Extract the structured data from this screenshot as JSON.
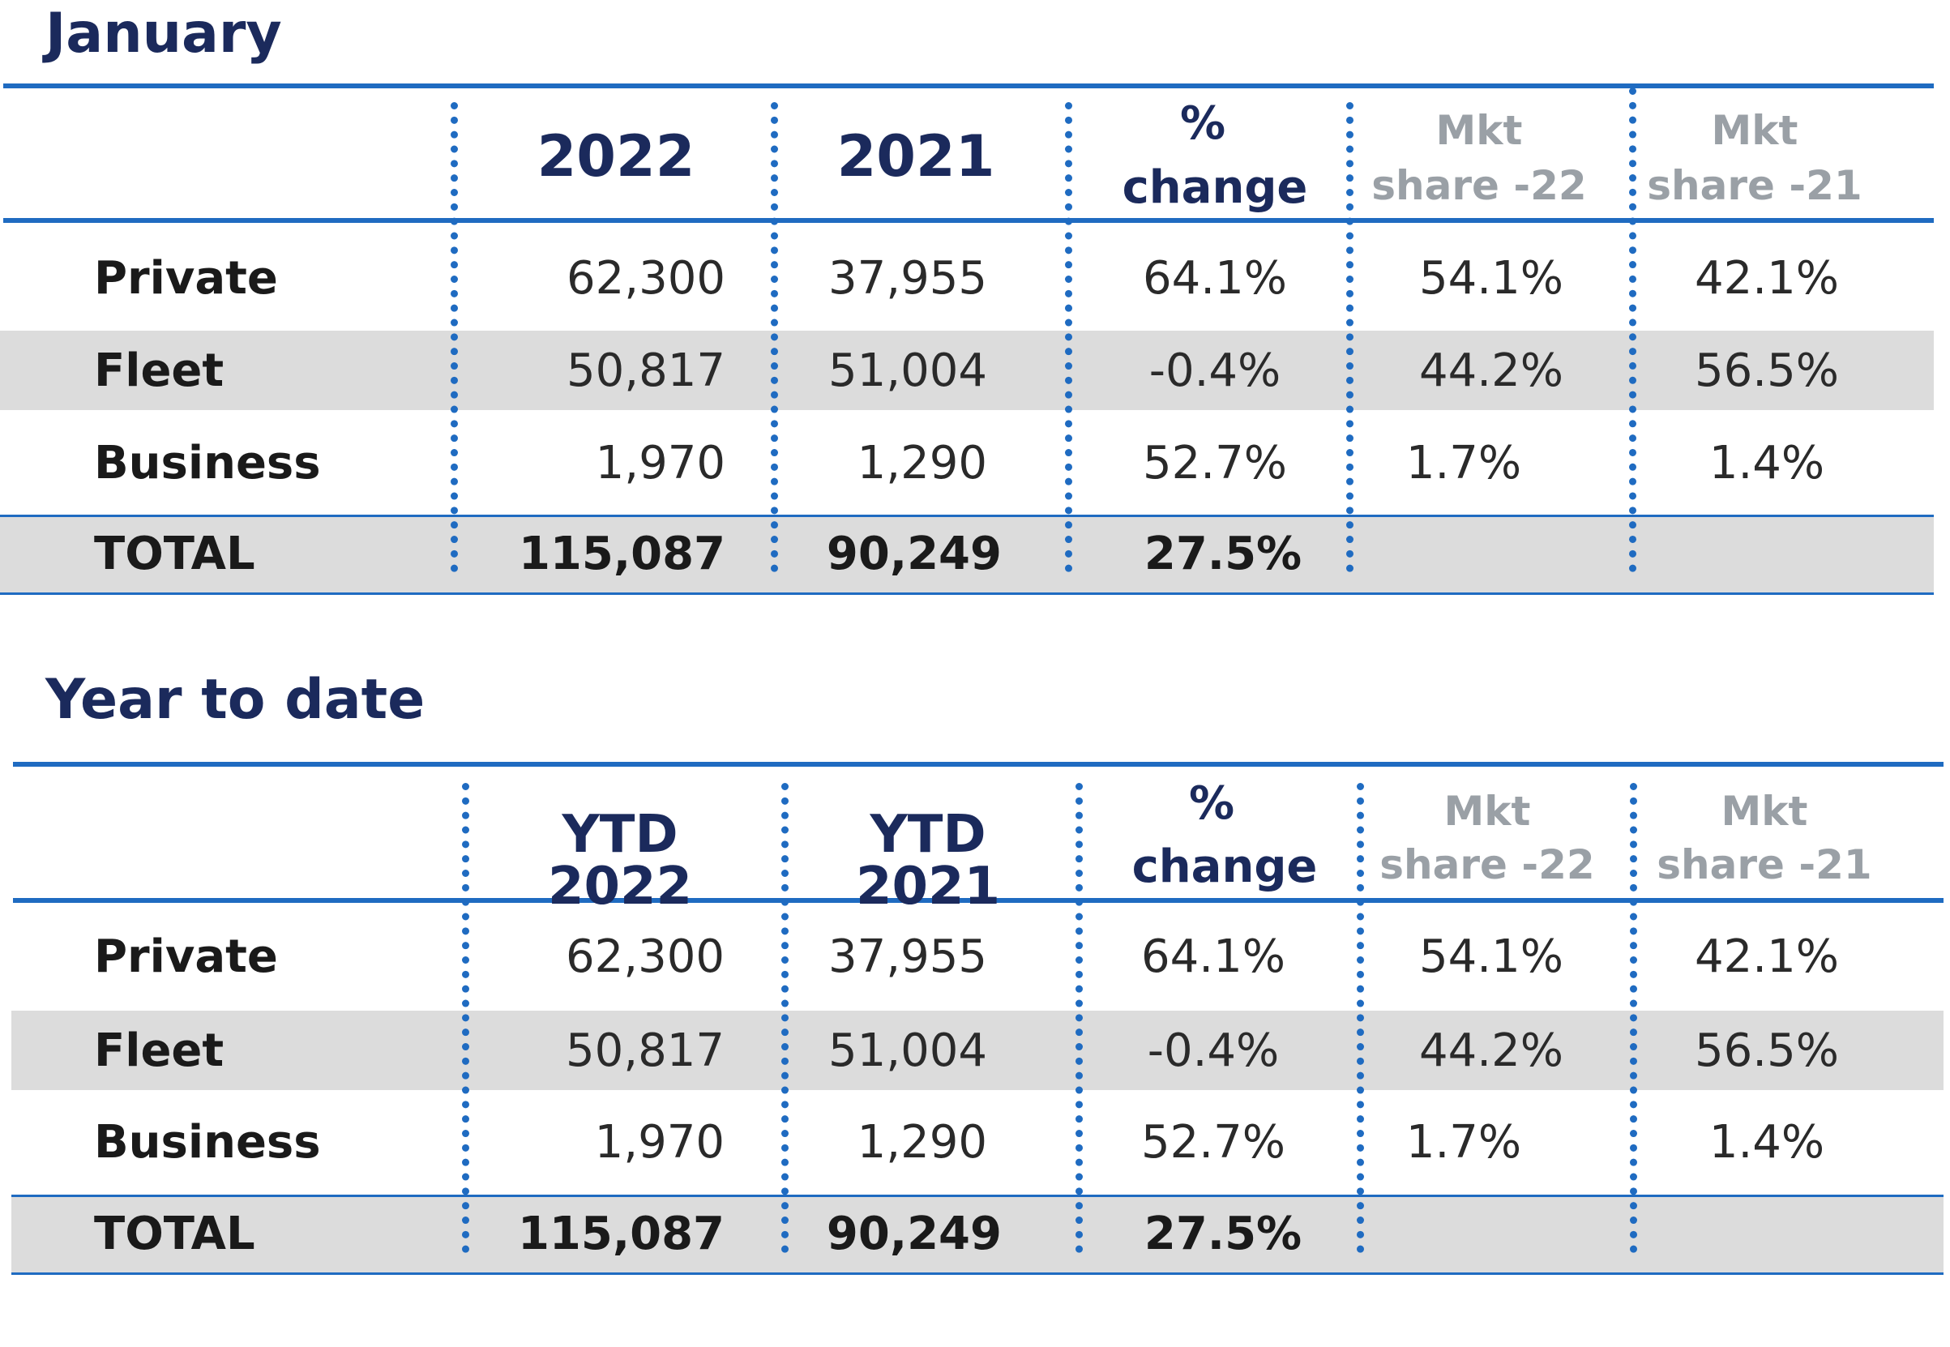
{
  "tables": [
    {
      "title": "January",
      "headers": {
        "col_2022": "2022",
        "col_2021": "2021",
        "pct_line1": "%",
        "pct_line2": "change",
        "mkt22_line1": "Mkt",
        "mkt22_line2": "share -22",
        "mkt21_line1": "Mkt",
        "mkt21_line2": "share -21"
      },
      "rows": [
        {
          "label": "Private",
          "v2022": "62,300",
          "v2021": "37,955",
          "change": "64.1%",
          "mkt22": "54.1%",
          "mkt21": "42.1%"
        },
        {
          "label": "Fleet",
          "v2022": "50,817",
          "v2021": "51,004",
          "change": "-0.4%",
          "mkt22": "44.2%",
          "mkt21": "56.5%"
        },
        {
          "label": "Business",
          "v2022": "1,970",
          "v2021": "1,290",
          "change": "52.7%",
          "mkt22": "1.7%",
          "mkt21": "1.4%"
        }
      ],
      "total": {
        "label": "TOTAL",
        "v2022": "115,087",
        "v2021": "90,249",
        "change": "27.5%"
      }
    },
    {
      "title": "Year to date",
      "headers": {
        "col_2022": "YTD 2022",
        "col_2021": "YTD 2021",
        "pct_line1": "%",
        "pct_line2": "change",
        "mkt22_line1": "Mkt",
        "mkt22_line2": "share -22",
        "mkt21_line1": "Mkt",
        "mkt21_line2": "share -21"
      },
      "rows": [
        {
          "label": "Private",
          "v2022": "62,300",
          "v2021": "37,955",
          "change": "64.1%",
          "mkt22": "54.1%",
          "mkt21": "42.1%"
        },
        {
          "label": "Fleet",
          "v2022": "50,817",
          "v2021": "51,004",
          "change": "-0.4%",
          "mkt22": "44.2%",
          "mkt21": "56.5%"
        },
        {
          "label": "Business",
          "v2022": "1,970",
          "v2021": "1,290",
          "change": "52.7%",
          "mkt22": "1.7%",
          "mkt21": "1.4%"
        }
      ],
      "total": {
        "label": "TOTAL",
        "v2022": "115,087",
        "v2021": "90,249",
        "change": "27.5%"
      }
    }
  ],
  "colors": {
    "accent": "#1f6bc1",
    "heading": "#1b2a5c",
    "band": "#dcdcdc",
    "muted": "#9aa0a6"
  }
}
